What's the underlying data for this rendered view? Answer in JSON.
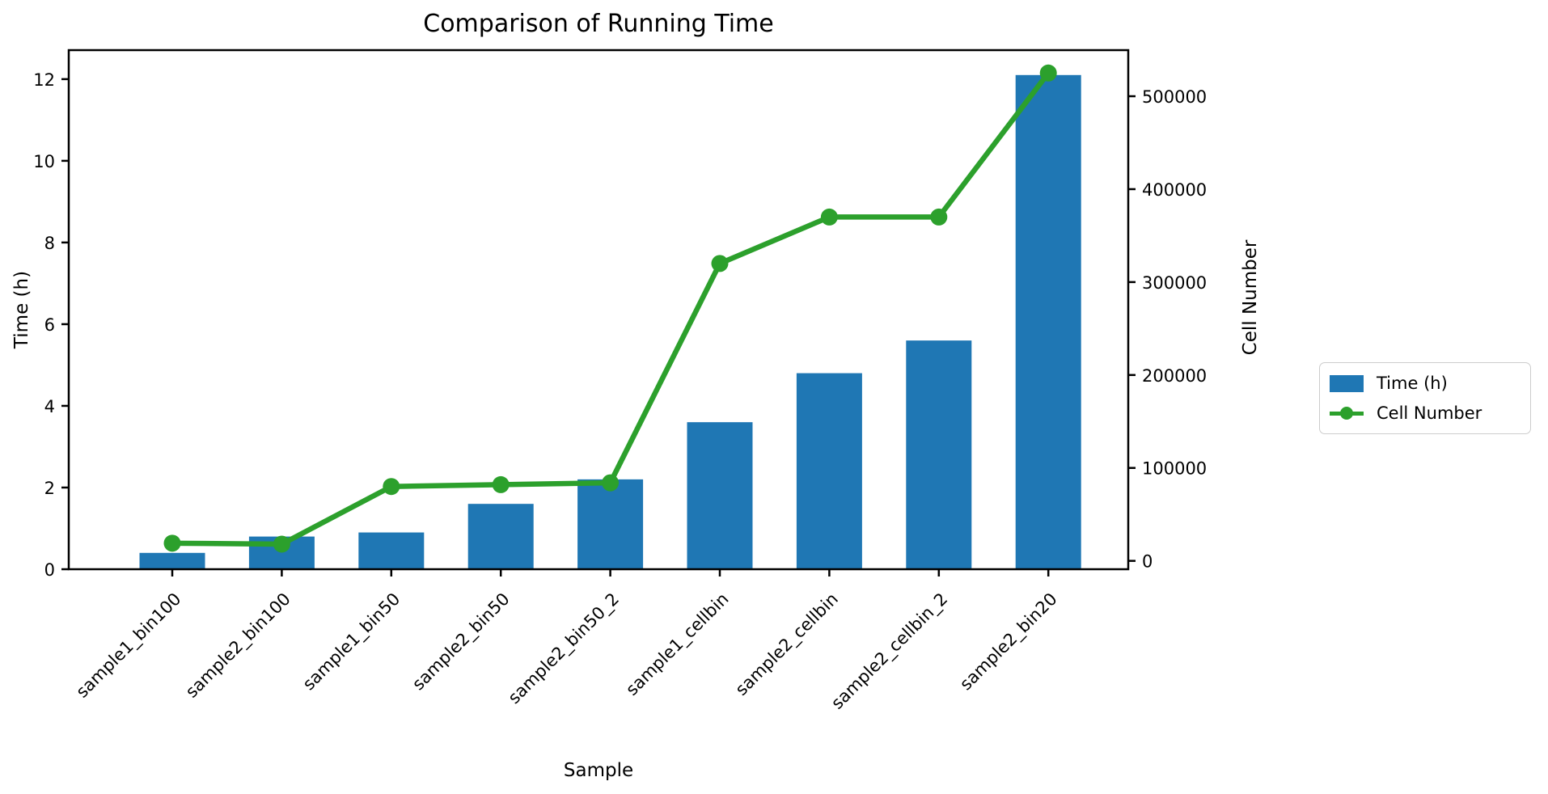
{
  "chart_data": {
    "type": "bar-line-combo",
    "title": "Comparison of Running Time",
    "xlabel": "Sample",
    "ylabel_left": "Time (h)",
    "ylabel_right": "Cell Number",
    "categories": [
      "sample1_bin100",
      "sample2_bin100",
      "sample1_bin50",
      "sample2_bin50",
      "sample2_bin50_2",
      "sample1_cellbin",
      "sample2_cellbin",
      "sample2_cellbin_2",
      "sample2_bin20"
    ],
    "series": [
      {
        "name": "Time (h)",
        "type": "bar",
        "axis": "left",
        "color": "#1f77b4",
        "values": [
          0.4,
          0.8,
          0.9,
          1.6,
          2.2,
          3.6,
          4.8,
          5.6,
          12.1
        ]
      },
      {
        "name": "Cell Number",
        "type": "line",
        "axis": "right",
        "color": "#2ca02c",
        "values": [
          19000,
          18000,
          80000,
          82000,
          84000,
          320000,
          370000,
          370000,
          525000
        ]
      }
    ],
    "left_axis": {
      "min": 0,
      "max": 12.71,
      "ticks": [
        0,
        2,
        4,
        6,
        8,
        10,
        12
      ]
    },
    "right_axis": {
      "min": -9000,
      "max": 549600,
      "ticks": [
        0,
        100000,
        200000,
        300000,
        400000,
        500000
      ]
    },
    "x_tick_rotation_deg": 45,
    "grid": "off",
    "legend": {
      "position": "outside-right",
      "entries": [
        "Time (h)",
        "Cell Number"
      ]
    },
    "colors": {
      "background": "#ffffff",
      "spine": "#000000",
      "text": "#000000",
      "legend_border": "#cccccc"
    }
  }
}
